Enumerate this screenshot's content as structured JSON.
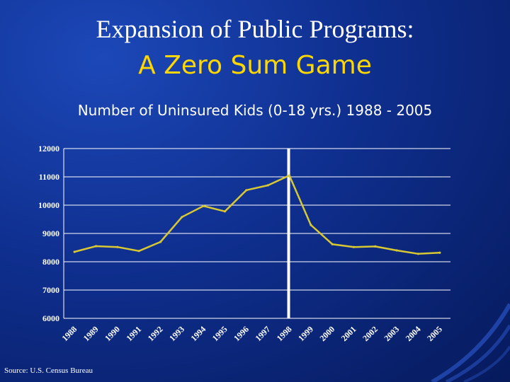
{
  "slide": {
    "title_line1": "Expansion of Public Programs:",
    "title_line2": "A Zero Sum Game",
    "source": "Source: U.S. Census Bureau"
  },
  "chart_data": {
    "type": "line",
    "title": "Number of Uninsured Kids (0-18 yrs.) 1988 - 2005",
    "xlabel": "",
    "ylabel": "",
    "categories": [
      "1988",
      "1989",
      "1990",
      "1991",
      "1992",
      "1993",
      "1994",
      "1995",
      "1996",
      "1997",
      "1998",
      "1999",
      "2000",
      "2001",
      "2002",
      "2003",
      "2004",
      "2005"
    ],
    "series": [
      {
        "name": "Uninsured Kids",
        "values": [
          8350,
          8550,
          8520,
          8380,
          8700,
          9580,
          9970,
          9780,
          10530,
          10700,
          11050,
          9300,
          8620,
          8520,
          8540,
          8400,
          8280,
          8320
        ]
      }
    ],
    "ylim": [
      6000,
      12000
    ],
    "yticks": [
      12000,
      11000,
      10000,
      9000,
      8000,
      7000,
      6000
    ],
    "grid": true,
    "marker_category": "1998",
    "colors": {
      "line": "#d8c832",
      "grid": "#ffffff",
      "marker": "#ffffff"
    }
  }
}
